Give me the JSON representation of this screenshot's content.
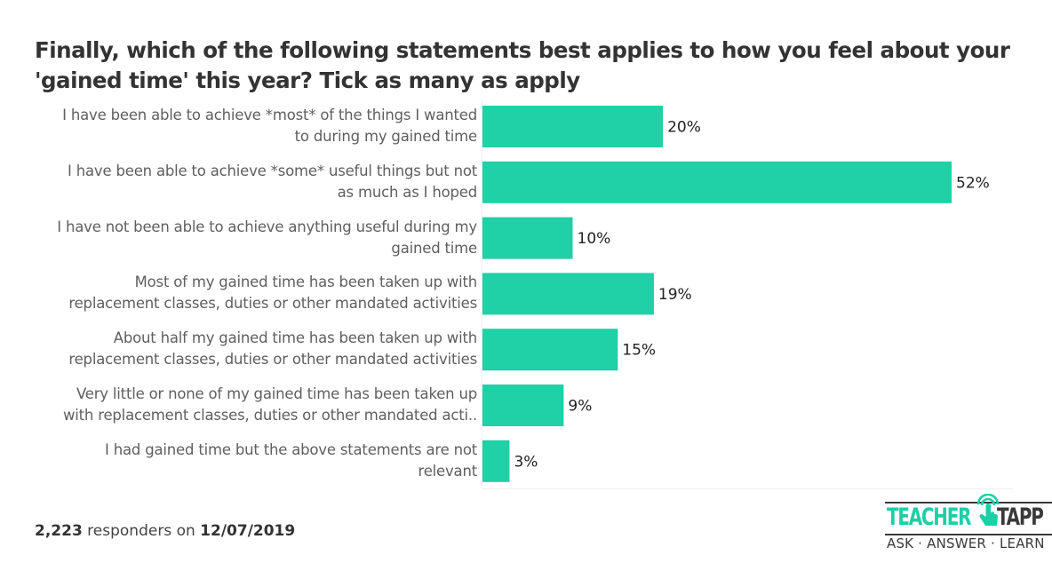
{
  "chart_data": {
    "type": "bar",
    "orientation": "horizontal",
    "title": "Finally, which of the following statements best applies to how you feel about your 'gained time' this year? Tick as many as apply",
    "title_lines": [
      "Finally, which of the following statements best applies to how you feel about your",
      "'gained time' this year? Tick as many as apply"
    ],
    "xlabel": "",
    "ylabel": "",
    "xlim": [
      0,
      52
    ],
    "grid": false,
    "legend": "none",
    "bar_color": "#20d0a6",
    "categories": [
      "I have been able to achieve *most* of the things I wanted to during my gained time",
      "I have been able to achieve *some* useful things but not as much as I hoped",
      "I have not been able to achieve anything useful during my gained time",
      "Most of my gained time has been taken up with replacement classes, duties or other mandated activities",
      "About half my gained time has been taken up with replacement classes, duties or other mandated activities",
      "Very little or none of my gained time has been taken up with replacement classes, duties or other mandated acti..",
      "I had gained time but the above statements are not relevant"
    ],
    "category_lines": [
      [
        "I have been able to achieve *most* of the things I wanted",
        "to during my gained time"
      ],
      [
        "I have been able to achieve *some* useful things but not",
        "as much as I hoped"
      ],
      [
        "I have not been able to achieve anything useful during my",
        "gained time"
      ],
      [
        "Most of my gained time has been taken up with",
        "replacement classes, duties or other mandated activities"
      ],
      [
        "About half my gained time has been taken up with",
        "replacement classes, duties or other mandated activities"
      ],
      [
        "Very little or none of my gained time has been taken up",
        "with replacement classes, duties or other mandated acti.."
      ],
      [
        "I had gained time but the above statements are not",
        "relevant"
      ]
    ],
    "values": [
      20,
      52,
      10,
      19,
      15,
      9,
      3
    ],
    "data_labels": [
      "20%",
      "52%",
      "10%",
      "19%",
      "15%",
      "9%",
      "3%"
    ],
    "unit": "%"
  },
  "footer": {
    "responders_count": "2,223",
    "responders_text": " responders on ",
    "date": "12/07/2019"
  },
  "logo": {
    "word1": "TEACHER",
    "word2": "TAPP",
    "tagline": "ASK · ANSWER · LEARN",
    "brand_color": "#1dcfa5",
    "dark_color": "#3a3a3a"
  }
}
